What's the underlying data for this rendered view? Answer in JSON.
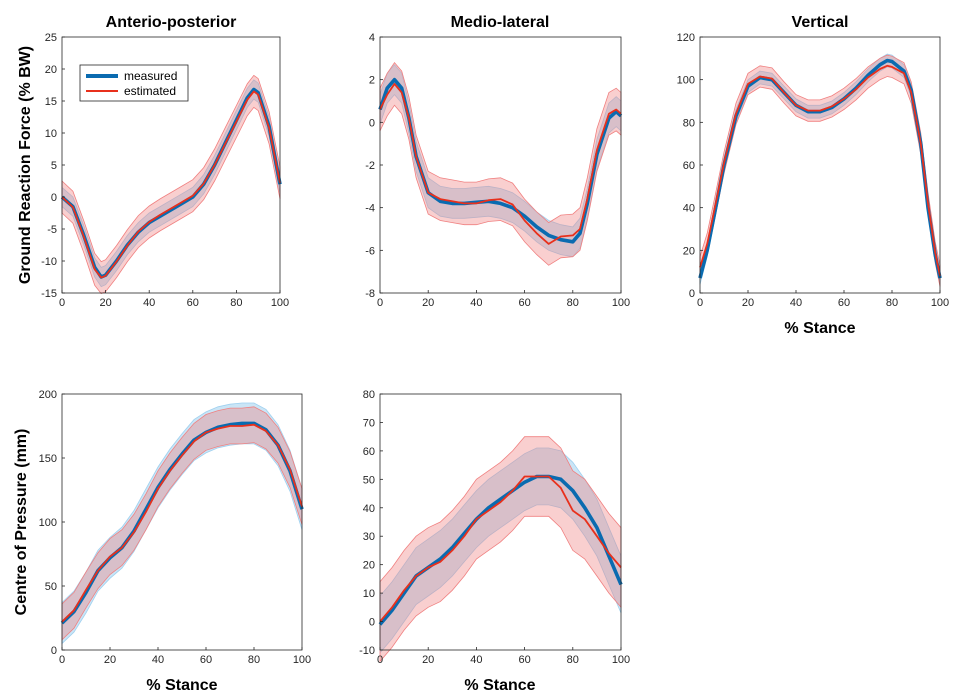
{
  "colors": {
    "measured_line": "#0a6bb0",
    "measured_band": "#9fd0ef",
    "estimated_line": "#e8301c",
    "estimated_band": "#f08080"
  },
  "legend": {
    "placement": "top-left",
    "entries": [
      "measured",
      "estimated"
    ]
  },
  "chart_data": [
    {
      "id": "ap",
      "type": "line",
      "title": "Anterio-posterior",
      "ylabel": "Ground Reaction Force (% BW)",
      "xlabel": "",
      "xlim": [
        0,
        100
      ],
      "ylim": [
        -15,
        25
      ],
      "xticks": [
        0,
        20,
        40,
        60,
        80,
        100
      ],
      "yticks": [
        -15,
        -10,
        -5,
        0,
        5,
        10,
        15,
        20,
        25
      ],
      "x": [
        0,
        5,
        10,
        15,
        18,
        20,
        25,
        30,
        35,
        40,
        45,
        50,
        55,
        60,
        65,
        70,
        75,
        80,
        85,
        88,
        90,
        95,
        100
      ],
      "series": [
        {
          "name": "measured",
          "band": 1.5,
          "values": [
            0,
            -1.5,
            -6,
            -11,
            -12.5,
            -12.2,
            -10,
            -7.5,
            -5.5,
            -4,
            -3,
            -2,
            -1,
            0,
            2,
            5,
            8.5,
            12,
            15.5,
            16.8,
            16.3,
            11,
            2
          ]
        },
        {
          "name": "estimated",
          "band": 2.5,
          "values": [
            0,
            -1.6,
            -6.2,
            -11.3,
            -12.6,
            -12.3,
            -10.1,
            -7.6,
            -5.4,
            -3.9,
            -2.8,
            -1.8,
            -0.8,
            0.2,
            2.1,
            5,
            8.4,
            11.8,
            15.2,
            16.5,
            16,
            10.8,
            2.2
          ]
        }
      ]
    },
    {
      "id": "ml",
      "type": "line",
      "title": "Medio-lateral",
      "ylabel": "",
      "xlabel": "",
      "xlim": [
        0,
        100
      ],
      "ylim": [
        -8,
        4
      ],
      "xticks": [
        0,
        20,
        40,
        60,
        80,
        100
      ],
      "yticks": [
        -8,
        -6,
        -4,
        -2,
        0,
        2,
        4
      ],
      "x": [
        0,
        3,
        6,
        9,
        12,
        15,
        20,
        25,
        30,
        35,
        40,
        45,
        50,
        55,
        60,
        65,
        70,
        75,
        80,
        83,
        86,
        90,
        95,
        98,
        100
      ],
      "series": [
        {
          "name": "measured",
          "band": 0.7,
          "values": [
            0.6,
            1.6,
            2.0,
            1.6,
            0.2,
            -1.6,
            -3.3,
            -3.7,
            -3.8,
            -3.8,
            -3.75,
            -3.7,
            -3.8,
            -4.0,
            -4.4,
            -4.9,
            -5.3,
            -5.5,
            -5.6,
            -5.2,
            -3.8,
            -1.5,
            0.2,
            0.5,
            0.3
          ]
        },
        {
          "name": "estimated",
          "band": 1.0,
          "values": [
            0.6,
            1.3,
            1.8,
            1.4,
            0.2,
            -1.6,
            -3.3,
            -3.6,
            -3.7,
            -3.8,
            -3.8,
            -3.65,
            -3.6,
            -3.85,
            -4.6,
            -5.2,
            -5.7,
            -5.35,
            -5.3,
            -5.0,
            -3.6,
            -1.3,
            0.4,
            0.6,
            0.4
          ]
        }
      ]
    },
    {
      "id": "vt",
      "type": "line",
      "title": "Vertical",
      "ylabel": "",
      "xlabel": "% Stance",
      "xlim": [
        0,
        100
      ],
      "ylim": [
        0,
        120
      ],
      "xticks": [
        0,
        20,
        40,
        60,
        80,
        100
      ],
      "yticks": [
        0,
        20,
        40,
        60,
        80,
        100,
        120
      ],
      "x": [
        0,
        3,
        6,
        10,
        15,
        20,
        25,
        30,
        35,
        40,
        45,
        50,
        55,
        60,
        65,
        70,
        75,
        78,
        80,
        85,
        88,
        92,
        95,
        98,
        100
      ],
      "series": [
        {
          "name": "measured",
          "band": 3,
          "values": [
            7,
            20,
            37,
            60,
            83,
            97,
            101,
            100,
            94,
            88,
            85,
            85,
            87,
            91,
            96,
            102,
            107,
            109,
            108.5,
            104,
            95,
            70,
            40,
            18,
            7
          ]
        },
        {
          "name": "estimated",
          "band": 5,
          "values": [
            12,
            23,
            39,
            61,
            84,
            98,
            101.5,
            100.5,
            94,
            88,
            85.5,
            85.5,
            87.5,
            91,
            95.5,
            101,
            105,
            106.5,
            106,
            103,
            94,
            70,
            42,
            19,
            8
          ]
        }
      ]
    },
    {
      "id": "cop1",
      "type": "line",
      "title": "",
      "ylabel": "Centre of Pressure (mm)",
      "xlabel": "% Stance",
      "xlim": [
        0,
        100
      ],
      "ylim": [
        0,
        200
      ],
      "xticks": [
        0,
        20,
        40,
        60,
        80,
        100
      ],
      "yticks": [
        0,
        50,
        100,
        150,
        200
      ],
      "x": [
        0,
        5,
        10,
        15,
        20,
        25,
        30,
        35,
        40,
        45,
        50,
        55,
        60,
        65,
        70,
        75,
        80,
        85,
        90,
        95,
        100
      ],
      "series": [
        {
          "name": "measured",
          "band": 16,
          "values": [
            21,
            30,
            45,
            62,
            72,
            80,
            93,
            110,
            127,
            141,
            153,
            164,
            170,
            174,
            176,
            177,
            177,
            172,
            160,
            140,
            110
          ]
        },
        {
          "name": "estimated",
          "band": 14,
          "values": [
            22,
            31,
            47,
            62,
            73,
            80,
            92,
            108,
            126,
            140,
            152,
            163,
            170,
            173,
            175,
            175,
            176,
            171,
            160,
            141,
            112
          ]
        }
      ]
    },
    {
      "id": "cop2",
      "type": "line",
      "title": "",
      "ylabel": "",
      "xlabel": "% Stance",
      "xlim": [
        0,
        100
      ],
      "ylim": [
        -10,
        80
      ],
      "xticks": [
        0,
        20,
        40,
        60,
        80,
        100
      ],
      "yticks": [
        -10,
        0,
        10,
        20,
        30,
        40,
        50,
        60,
        70,
        80
      ],
      "x": [
        0,
        5,
        10,
        15,
        20,
        25,
        30,
        35,
        40,
        45,
        50,
        55,
        60,
        65,
        70,
        75,
        80,
        85,
        90,
        95,
        100
      ],
      "series": [
        {
          "name": "measured",
          "band": 10,
          "values": [
            -1,
            4,
            10,
            16,
            19,
            22,
            26,
            31,
            36,
            40,
            43,
            46,
            49,
            51,
            51,
            50,
            46,
            40,
            33,
            23,
            13
          ]
        },
        {
          "name": "estimated",
          "band": 14,
          "values": [
            0,
            5,
            11,
            16,
            19,
            21,
            25,
            30,
            36,
            39,
            42,
            46,
            51,
            51,
            51,
            47,
            39,
            36,
            30,
            24,
            19
          ]
        }
      ]
    }
  ]
}
